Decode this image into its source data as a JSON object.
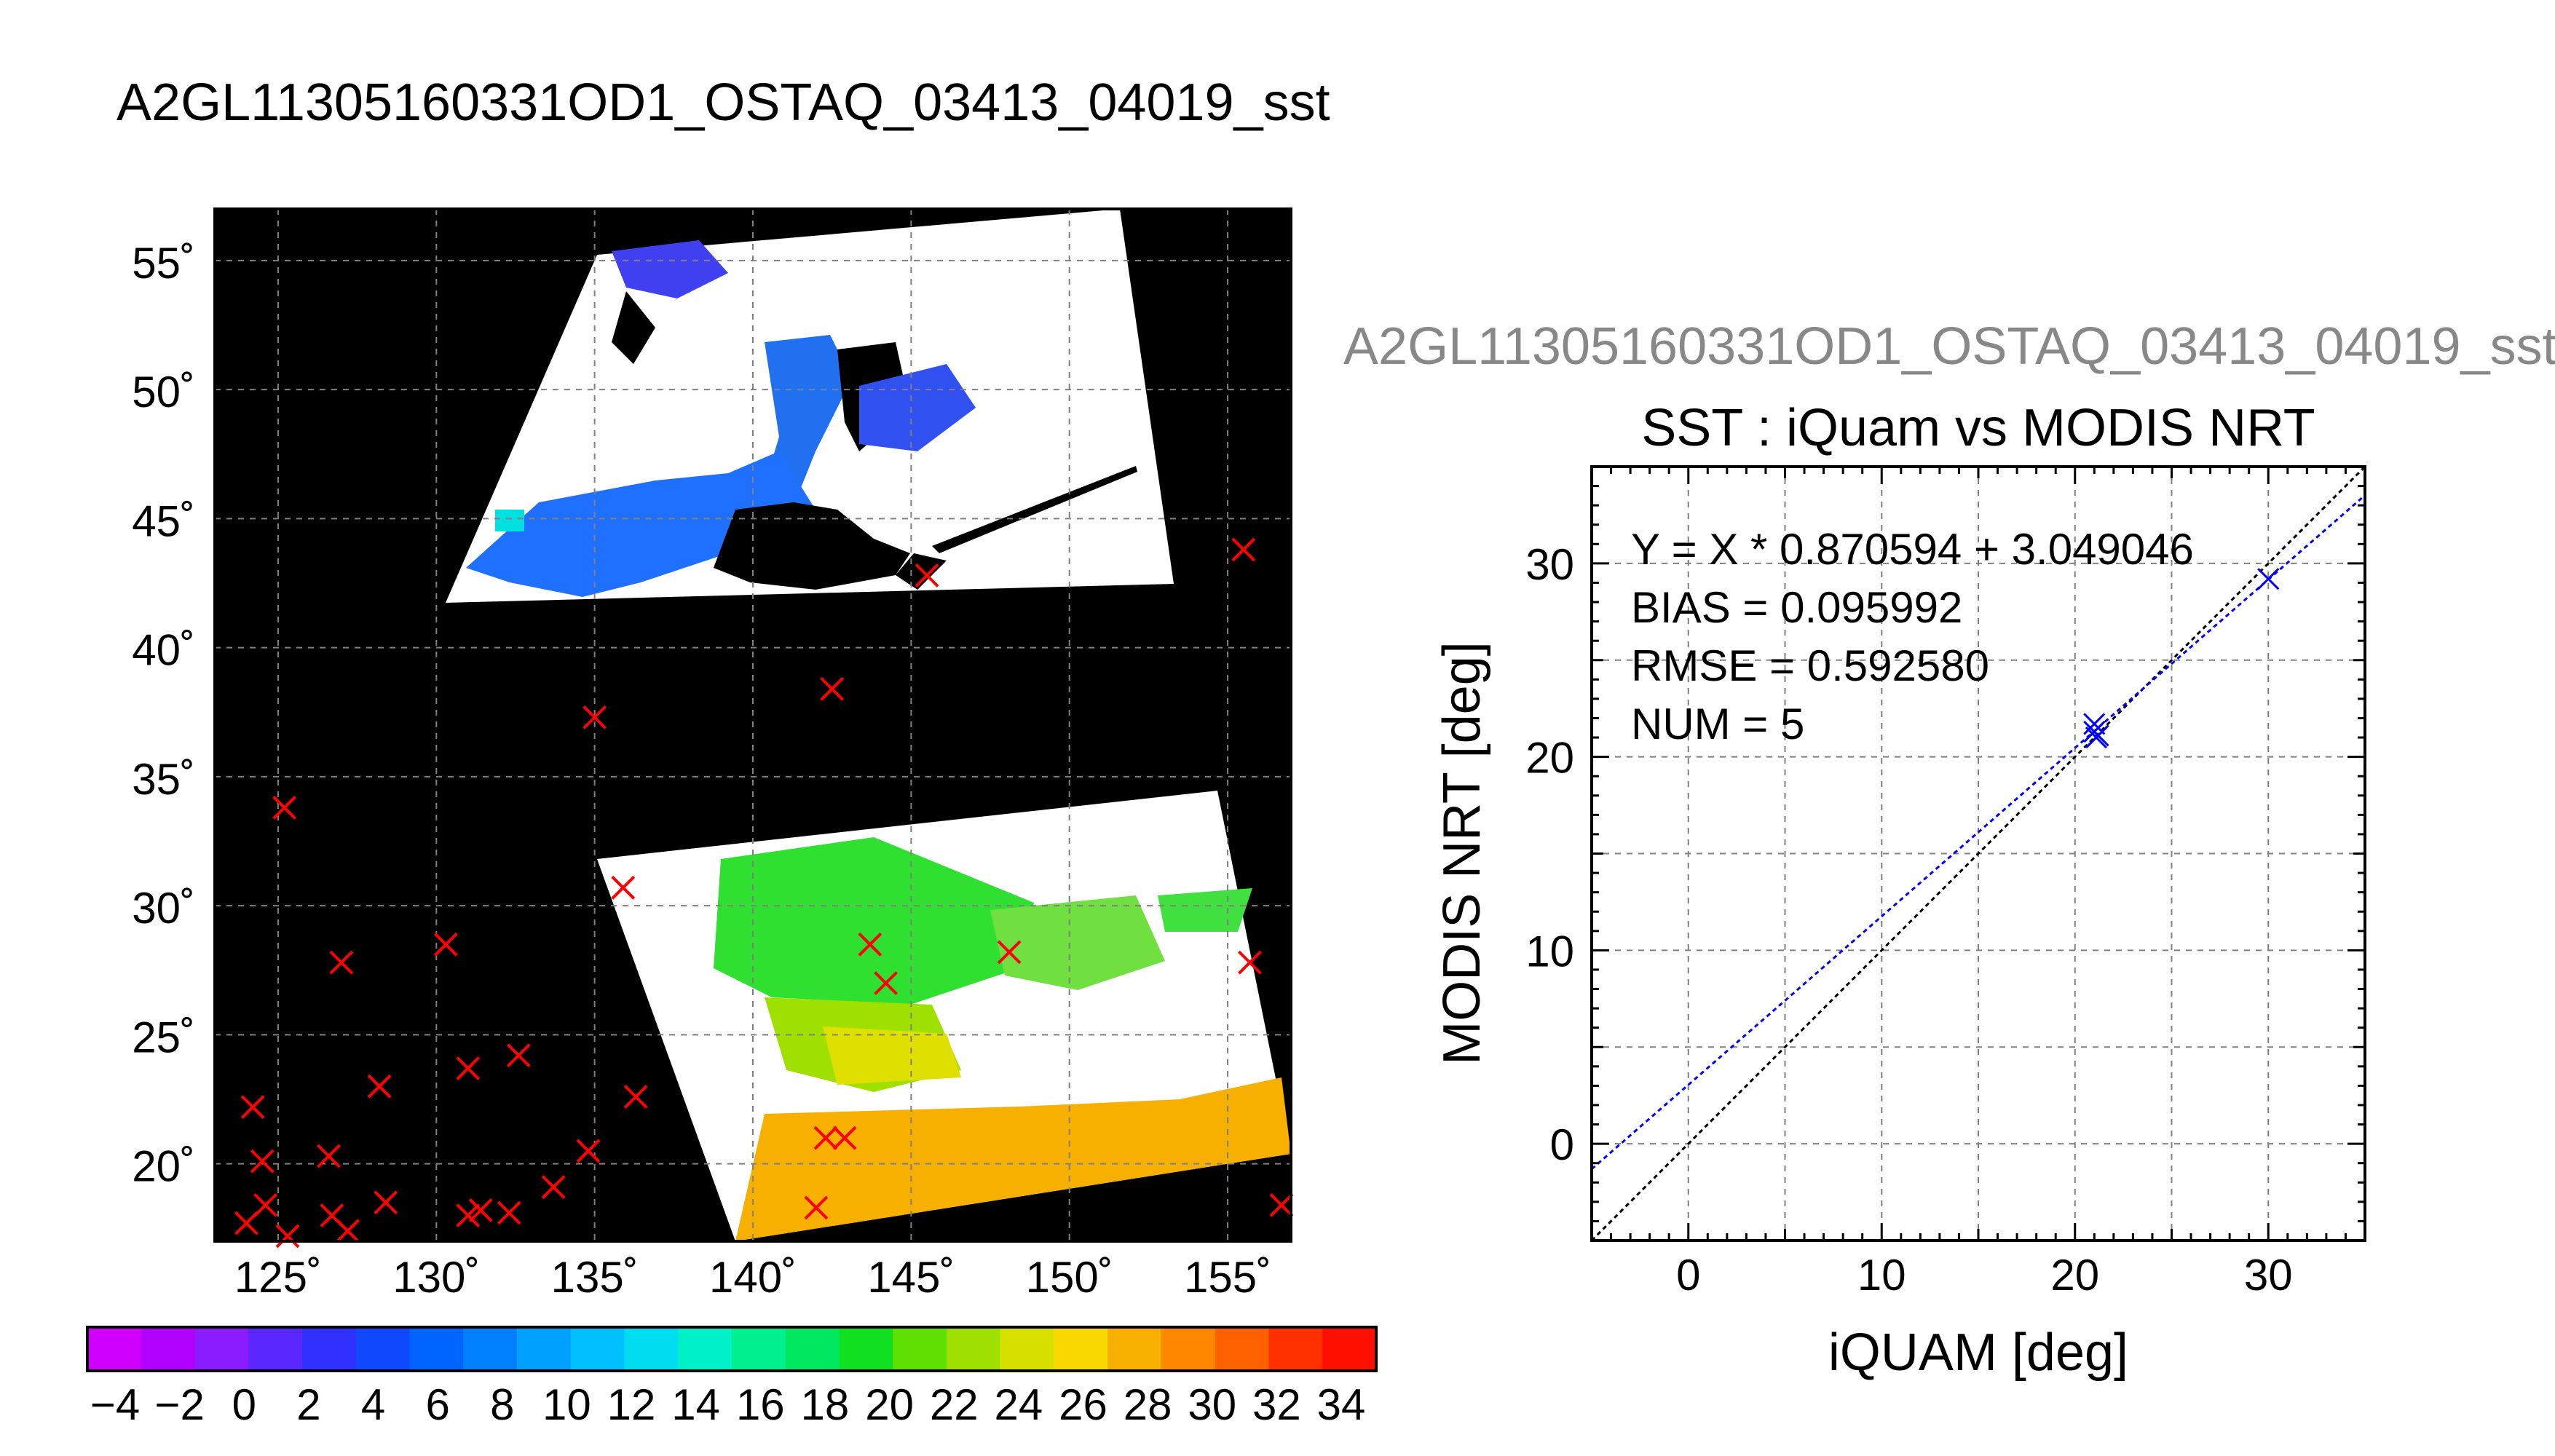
{
  "page_title": "A2GL11305160331OD1_OSTAQ_03413_04019_sst",
  "map": {
    "lat_ticks": [
      "55˚",
      "50˚",
      "45˚",
      "40˚",
      "35˚",
      "30˚",
      "25˚",
      "20˚"
    ],
    "lon_ticks": [
      "125˚",
      "130˚",
      "135˚",
      "140˚",
      "145˚",
      "150˚",
      "155˚"
    ],
    "lon_range": [
      123,
      157
    ],
    "lat_range": [
      17,
      57
    ],
    "colorbar_labels": [
      "−4",
      "−2",
      "0",
      "2",
      "4",
      "6",
      "8",
      "10",
      "12",
      "14",
      "16",
      "18",
      "20",
      "22",
      "24",
      "26",
      "28",
      "30",
      "32",
      "34"
    ],
    "colorbar_colors": [
      "#d000ff",
      "#b000ff",
      "#8a1cff",
      "#5a28ff",
      "#3030ff",
      "#1048ff",
      "#0064ff",
      "#0080ff",
      "#00a0ff",
      "#00c0ff",
      "#00dcf0",
      "#00f0c8",
      "#00f090",
      "#00e860",
      "#10e020",
      "#60e000",
      "#a0e000",
      "#d8e000",
      "#f8d800",
      "#f8b000",
      "#ff8800",
      "#ff6000",
      "#ff3000",
      "#ff1000"
    ]
  },
  "scatter_title": "A2GL11305160331OD1_OSTAQ_03413_04019_sst",
  "chart_data": {
    "type": "scatter",
    "title": "SST : iQuam vs MODIS NRT",
    "xlabel": "iQUAM [deg]",
    "ylabel": "MODIS NRT [deg]",
    "xlim": [
      -5,
      35
    ],
    "ylim": [
      -5,
      35
    ],
    "xticks": [
      "0",
      "10",
      "20",
      "30"
    ],
    "yticks": [
      "0",
      "10",
      "20",
      "30"
    ],
    "grid": true,
    "annotations": [
      "Y = X * 0.870594 + 3.049046",
      "BIAS = 0.095992",
      "RMSE = 0.592580",
      "NUM = 5"
    ],
    "points": {
      "x": [
        21.0,
        21.0,
        21.2,
        21.1,
        30.0
      ],
      "y": [
        21.7,
        21.3,
        21.1,
        21.0,
        29.2
      ]
    },
    "fit": {
      "slope": 0.870594,
      "intercept": 3.049046
    },
    "identity_line": true,
    "colors": {
      "points": "#0000ff",
      "fit": "#0000ff",
      "identity": "#000000"
    }
  },
  "map_points": [
    {
      "lon": 124.2,
      "lat": 22.2
    },
    {
      "lon": 124.5,
      "lat": 20.1
    },
    {
      "lon": 124.6,
      "lat": 18.4
    },
    {
      "lon": 124.0,
      "lat": 17.7
    },
    {
      "lon": 125.3,
      "lat": 17.2
    },
    {
      "lon": 126.6,
      "lat": 20.3
    },
    {
      "lon": 126.7,
      "lat": 18.0
    },
    {
      "lon": 127.2,
      "lat": 17.4
    },
    {
      "lon": 128.2,
      "lat": 23.0
    },
    {
      "lon": 128.4,
      "lat": 18.5
    },
    {
      "lon": 127.0,
      "lat": 27.8
    },
    {
      "lon": 125.2,
      "lat": 33.8
    },
    {
      "lon": 130.3,
      "lat": 28.5
    },
    {
      "lon": 131.0,
      "lat": 23.7
    },
    {
      "lon": 131.0,
      "lat": 18.0
    },
    {
      "lon": 131.4,
      "lat": 18.2
    },
    {
      "lon": 132.3,
      "lat": 18.1
    },
    {
      "lon": 132.6,
      "lat": 24.2
    },
    {
      "lon": 133.7,
      "lat": 19.1
    },
    {
      "lon": 134.8,
      "lat": 20.5
    },
    {
      "lon": 136.3,
      "lat": 22.6
    },
    {
      "lon": 135.9,
      "lat": 30.7
    },
    {
      "lon": 135.0,
      "lat": 37.3
    },
    {
      "lon": 142.5,
      "lat": 38.4
    },
    {
      "lon": 145.5,
      "lat": 42.8
    },
    {
      "lon": 155.5,
      "lat": 43.8
    },
    {
      "lon": 143.7,
      "lat": 28.5
    },
    {
      "lon": 144.2,
      "lat": 27.0
    },
    {
      "lon": 148.1,
      "lat": 28.2
    },
    {
      "lon": 142.3,
      "lat": 21.0
    },
    {
      "lon": 142.9,
      "lat": 21.0
    },
    {
      "lon": 142.0,
      "lat": 18.3
    },
    {
      "lon": 155.7,
      "lat": 27.8
    },
    {
      "lon": 156.7,
      "lat": 18.4
    }
  ]
}
